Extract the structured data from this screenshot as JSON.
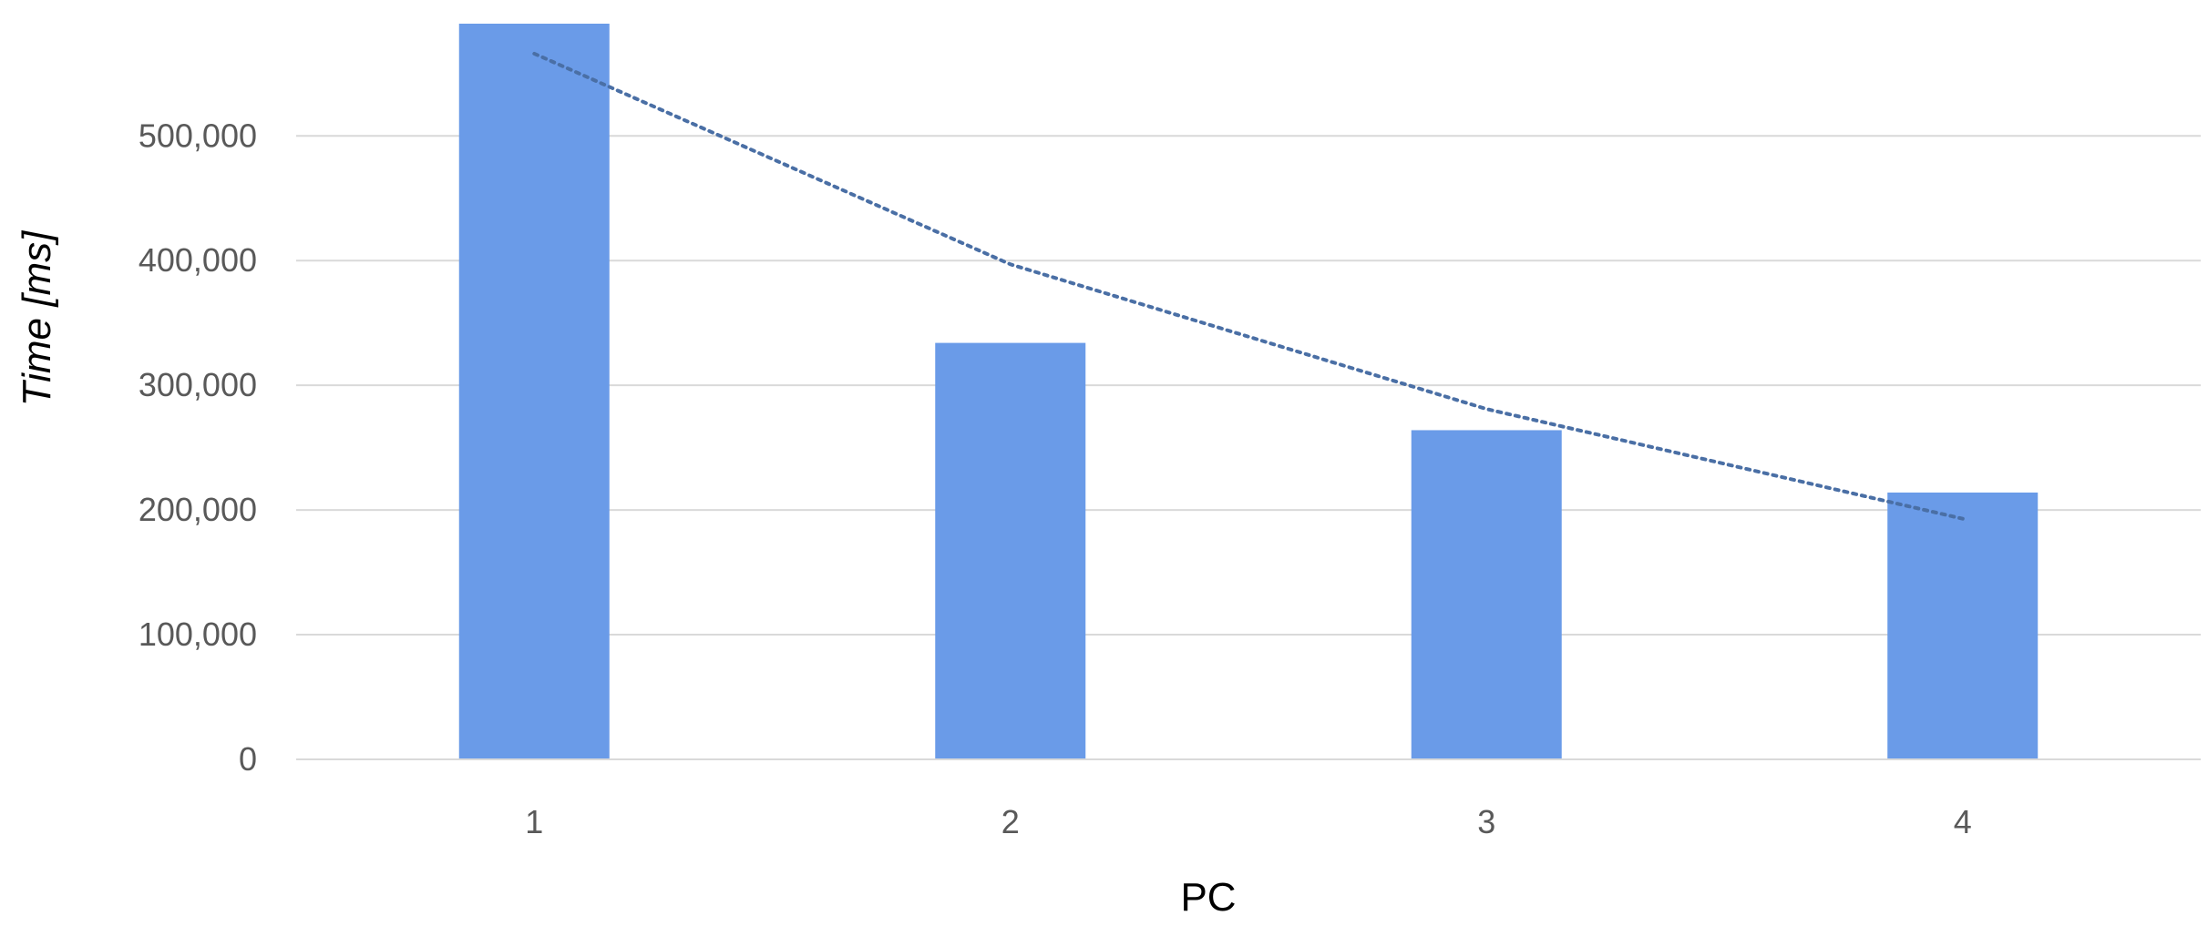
{
  "chart_data": {
    "type": "bar",
    "title": "",
    "xlabel": "PC",
    "ylabel": "Time [ms]",
    "categories": [
      "1",
      "2",
      "3",
      "4"
    ],
    "values": [
      590000,
      334000,
      264000,
      214000
    ],
    "ylim": [
      0,
      590000
    ],
    "yticks": [
      0,
      100000,
      200000,
      300000,
      400000,
      500000
    ],
    "ytick_labels": [
      "0",
      "100,000",
      "200,000",
      "300,000",
      "400,000",
      "500,000"
    ],
    "grid": true,
    "legend": "none",
    "bar_color": "#6a9be8",
    "trendline": {
      "style": "dotted",
      "color": "#4a6fa5",
      "x": [
        1,
        2,
        3,
        4
      ],
      "y": [
        566000,
        397000,
        281000,
        193000
      ]
    }
  }
}
